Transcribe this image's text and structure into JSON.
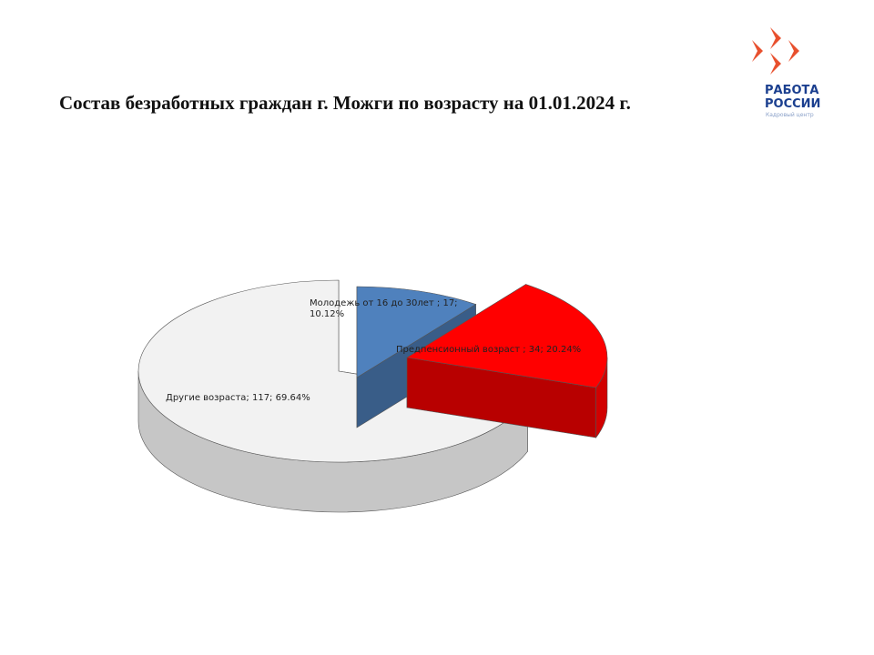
{
  "chart_data": {
    "type": "pie3d",
    "title": "Состав безработных граждан г. Можги по возрасту на 01.01.2024 г.",
    "categories": [
      "Молодежь от 16 до 30лет",
      "Предпенсионный возраст",
      "Другие возраста"
    ],
    "values": [
      17,
      34,
      117
    ],
    "value_labels": [
      "Молодежь от 16 до 30лет ; 17; 10.12%",
      "Предпенсионный возраст ; 34; 20.24%",
      "Другие возраста; 117; 69.64%"
    ],
    "colors": [
      "#4f81bd",
      "#ff0000",
      "#f2f2f2"
    ]
  },
  "logo": {
    "title": "РАБОТА",
    "title2": "РОССИИ",
    "subtitle": "Кадровый центр"
  }
}
